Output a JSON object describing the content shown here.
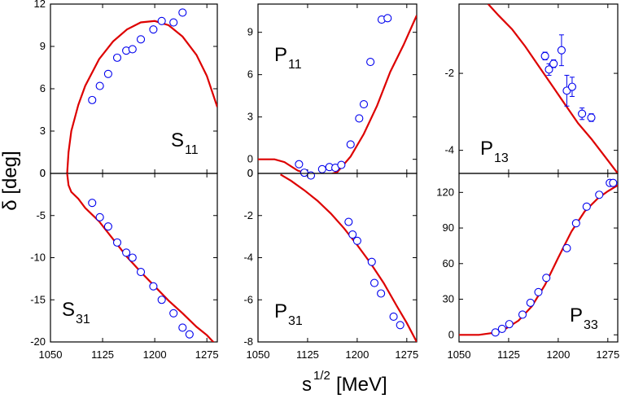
{
  "figure": {
    "ylabel": "δ [deg]",
    "xlabel_base": "s",
    "xlabel_sup": "1/2",
    "xlabel_unit": " [MeV]",
    "curve_color": "#dd0000",
    "marker_color": "#0000ee"
  },
  "chart_data": [
    {
      "id": "S11",
      "type": "scatter",
      "label_main": "S",
      "label_sub": "11",
      "xlim": [
        1050,
        1290
      ],
      "ylim": [
        0,
        12
      ],
      "yticks": [
        0,
        3,
        6,
        9,
        12
      ],
      "xticks": [
        1050,
        1125,
        1200,
        1275
      ],
      "x_tick_labels": false,
      "data": {
        "x": [
          1110,
          1121,
          1133,
          1146,
          1159,
          1168,
          1180,
          1198,
          1210,
          1227,
          1240
        ],
        "y": [
          5.2,
          6.2,
          7.05,
          8.2,
          8.7,
          8.8,
          9.5,
          10.2,
          10.8,
          10.7,
          11.4
        ]
      },
      "curve": {
        "x": [
          1074,
          1076,
          1080,
          1090,
          1100,
          1120,
          1140,
          1160,
          1180,
          1200,
          1220,
          1240,
          1260,
          1275,
          1290
        ],
        "y": [
          0,
          1.5,
          3.0,
          4.85,
          6.2,
          8.1,
          9.35,
          10.2,
          10.7,
          10.8,
          10.5,
          9.7,
          8.4,
          6.9,
          4.7
        ]
      }
    },
    {
      "id": "P11",
      "type": "scatter",
      "label_main": "P",
      "label_sub": "11",
      "xlim": [
        1050,
        1290
      ],
      "ylim": [
        -1,
        11
      ],
      "yticks": [
        0,
        3,
        6,
        9
      ],
      "ytick_labels": [
        "0",
        "3",
        "6",
        "9"
      ],
      "extra_tick_labels": [
        {
          "value": -1,
          "text": "0"
        }
      ],
      "xticks": [
        1050,
        1125,
        1200,
        1275
      ],
      "x_tick_labels": false,
      "data": {
        "x": [
          1112,
          1120,
          1130,
          1147,
          1158,
          1167,
          1176,
          1190,
          1203,
          1210,
          1220,
          1237,
          1246
        ],
        "y": [
          -0.35,
          -0.95,
          -1.15,
          -0.7,
          -0.55,
          -0.6,
          -0.4,
          1.05,
          2.9,
          3.9,
          6.9,
          9.9,
          10.0
        ]
      },
      "curve": {
        "x": [
          1050,
          1075,
          1090,
          1110,
          1130,
          1150,
          1170,
          1190,
          1210,
          1230,
          1250,
          1270,
          1290
        ],
        "y": [
          0,
          0,
          -0.2,
          -0.8,
          -1.1,
          -1.2,
          -0.9,
          0.2,
          1.8,
          3.8,
          6.2,
          8.1,
          10.2
        ]
      }
    },
    {
      "id": "P13",
      "type": "scatter",
      "label_main": "P",
      "label_sub": "13",
      "xlim": [
        1050,
        1290
      ],
      "ylim": [
        -4.6,
        -0.2
      ],
      "yticks": [
        -2,
        -4
      ],
      "xticks": [
        1050,
        1125,
        1200,
        1275
      ],
      "x_tick_labels": false,
      "data": {
        "x": [
          1180,
          1186,
          1193,
          1205,
          1213,
          1221,
          1236,
          1250
        ],
        "y": [
          -1.55,
          -1.9,
          -1.75,
          -1.4,
          -2.45,
          -2.35,
          -3.05,
          -3.15
        ],
        "err": [
          0.1,
          0.15,
          0.1,
          0.4,
          0.4,
          0.25,
          0.15,
          0.1
        ]
      },
      "curve": {
        "x": [
          1094,
          1110,
          1130,
          1150,
          1170,
          1190,
          1210,
          1230,
          1250,
          1270,
          1290
        ],
        "y": [
          -0.2,
          -0.5,
          -0.85,
          -1.3,
          -1.8,
          -2.3,
          -2.8,
          -3.3,
          -3.7,
          -4.15,
          -4.6
        ]
      }
    },
    {
      "id": "S31",
      "type": "scatter",
      "label_main": "S",
      "label_sub": "31",
      "xlim": [
        1050,
        1290
      ],
      "ylim": [
        -20,
        0
      ],
      "yticks": [
        0,
        -5,
        -10,
        -15,
        -20
      ],
      "xticks": [
        1050,
        1125,
        1200,
        1275
      ],
      "x_tick_labels": true,
      "data": {
        "x": [
          1110,
          1121,
          1133,
          1146,
          1159,
          1168,
          1180,
          1198,
          1210,
          1227,
          1240,
          1250
        ],
        "y": [
          -3.5,
          -5.2,
          -6.3,
          -8.2,
          -9.4,
          -10.0,
          -11.7,
          -13.4,
          -15.0,
          -16.6,
          -18.3,
          -19.1
        ]
      },
      "curve": {
        "x": [
          1074,
          1076,
          1080,
          1090,
          1100,
          1120,
          1140,
          1160,
          1180,
          1200,
          1220,
          1240,
          1260,
          1275,
          1290
        ],
        "y": [
          0,
          -1.4,
          -2.2,
          -3.0,
          -4.1,
          -5.7,
          -7.8,
          -9.9,
          -11.7,
          -13.4,
          -15.1,
          -16.6,
          -18.2,
          -19.2,
          -20.5
        ]
      }
    },
    {
      "id": "P31",
      "type": "scatter",
      "label_main": "P",
      "label_sub": "31",
      "xlim": [
        1050,
        1290
      ],
      "ylim": [
        -8,
        0
      ],
      "yticks": [
        0,
        -2,
        -4,
        -6,
        -8
      ],
      "xticks": [
        1050,
        1125,
        1200,
        1275
      ],
      "x_tick_labels": true,
      "data": {
        "x": [
          1187,
          1193,
          1200,
          1222,
          1226,
          1236,
          1255,
          1265
        ],
        "y": [
          -2.3,
          -2.9,
          -3.2,
          -4.2,
          -5.2,
          -5.7,
          -6.8,
          -7.2
        ]
      },
      "curve": {
        "x": [
          1084,
          1100,
          1120,
          1140,
          1160,
          1180,
          1200,
          1220,
          1240,
          1260,
          1275,
          1290
        ],
        "y": [
          -0.05,
          -0.35,
          -0.8,
          -1.3,
          -1.9,
          -2.6,
          -3.4,
          -4.25,
          -5.2,
          -6.3,
          -7.1,
          -8.0
        ]
      }
    },
    {
      "id": "P33",
      "type": "scatter",
      "label_main": "P",
      "label_sub": "33",
      "xlim": [
        1050,
        1290
      ],
      "ylim": [
        -6,
        136
      ],
      "yticks": [
        0,
        30,
        60,
        90,
        120
      ],
      "xticks": [
        1050,
        1125,
        1200,
        1275
      ],
      "x_tick_labels": true,
      "data": {
        "x": [
          1105,
          1115,
          1126,
          1146,
          1158,
          1170,
          1182,
          1213,
          1227,
          1243,
          1262,
          1278,
          1283
        ],
        "y": [
          2,
          5,
          9,
          17,
          27,
          36,
          48,
          73,
          94,
          108,
          118,
          128,
          128
        ]
      },
      "curve": {
        "x": [
          1050,
          1080,
          1100,
          1120,
          1140,
          1160,
          1180,
          1200,
          1220,
          1240,
          1260,
          1275,
          1290
        ],
        "y": [
          0,
          0,
          1.5,
          5,
          12,
          24,
          42,
          65,
          87,
          104,
          115,
          121,
          126
        ]
      }
    }
  ]
}
